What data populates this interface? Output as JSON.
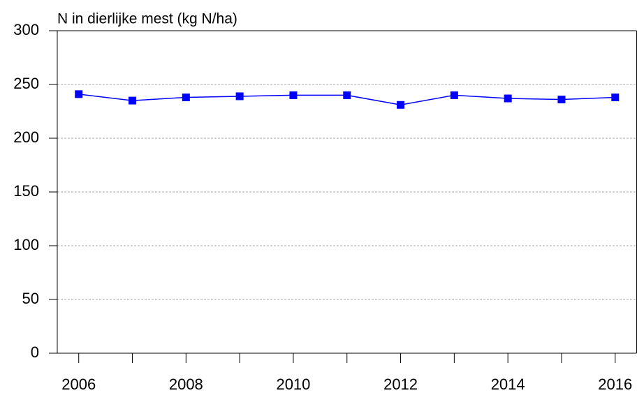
{
  "chart_data": {
    "type": "line",
    "title": "N in dierlijke mest (kg N/ha)",
    "x": [
      2006,
      2007,
      2008,
      2009,
      2010,
      2011,
      2012,
      2013,
      2014,
      2015,
      2016
    ],
    "series": [
      {
        "name": "N in dierlijke mest",
        "color": "#0000ff",
        "values": [
          241,
          235,
          238,
          239,
          240,
          240,
          231,
          240,
          237,
          236,
          238
        ]
      }
    ],
    "xlim": [
      2005.6,
      2016.4
    ],
    "xticks": [
      2006,
      2008,
      2010,
      2012,
      2014,
      2016
    ],
    "xminorticks": [
      2007,
      2009,
      2011,
      2013,
      2015
    ],
    "ylim": [
      0,
      300
    ],
    "yticks": [
      0,
      50,
      100,
      150,
      200,
      250,
      300
    ],
    "grid": true
  }
}
